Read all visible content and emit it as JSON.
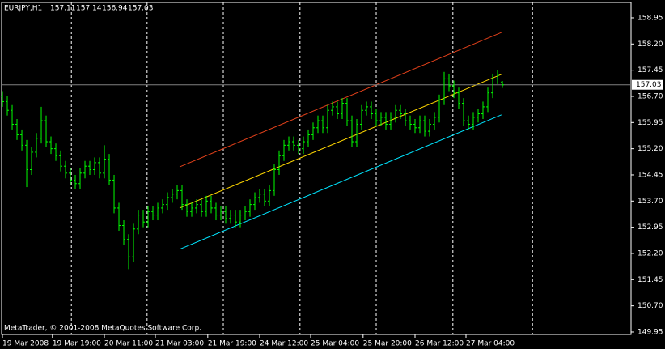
{
  "chart_data": {
    "type": "ohlc",
    "title": "EURJPY,H1",
    "footer": "MetaTrader, © 2001-2008 MetaQuotes Software Corp.",
    "color": "#00ff00",
    "grid": false,
    "open": [
      156.7,
      156.55,
      156.3,
      155.9,
      155.6,
      155.3,
      154.6,
      155.1,
      155.5,
      156.0,
      155.4,
      155.2,
      155.0,
      154.7,
      154.5,
      154.3,
      154.2,
      154.5,
      154.7,
      154.6,
      154.8,
      154.5,
      154.9,
      154.3,
      153.5,
      153.0,
      152.6,
      152.1,
      152.9,
      153.3,
      153.1,
      153.4,
      153.3,
      153.5,
      153.6,
      153.8,
      153.9,
      154.0,
      153.6,
      153.4,
      153.5,
      153.6,
      153.4,
      153.7,
      153.5,
      153.3,
      153.4,
      153.2,
      153.3,
      153.1,
      153.3,
      153.4,
      153.6,
      153.8,
      153.9,
      153.7,
      154.0,
      154.6,
      155.0,
      155.3,
      155.4,
      155.3,
      155.2,
      155.4,
      155.6,
      155.8,
      156.0,
      155.8,
      156.3,
      156.4,
      156.2,
      156.5,
      156.0,
      155.4,
      155.9,
      156.3,
      156.4,
      156.2,
      156.0,
      156.1,
      155.9,
      156.1,
      156.3,
      156.2,
      156.0,
      155.9,
      155.8,
      156.0,
      155.7,
      155.9,
      156.1,
      156.6,
      157.2,
      157.0,
      156.8,
      156.5,
      156.0,
      155.9,
      156.1,
      156.2,
      156.4,
      156.8,
      157.2,
      157.11
    ],
    "high": [
      156.85,
      156.7,
      156.45,
      156.05,
      155.75,
      155.45,
      155.25,
      155.65,
      156.4,
      156.15,
      155.55,
      155.35,
      155.15,
      154.85,
      154.65,
      154.45,
      154.65,
      154.85,
      154.85,
      154.95,
      154.95,
      155.3,
      155.05,
      154.45,
      153.65,
      153.15,
      152.75,
      153.05,
      153.45,
      153.45,
      153.55,
      153.55,
      153.65,
      153.75,
      153.95,
      154.05,
      154.15,
      154.15,
      153.75,
      153.65,
      153.75,
      153.75,
      153.85,
      153.85,
      153.65,
      153.55,
      153.55,
      153.45,
      153.45,
      153.45,
      153.55,
      153.75,
      153.95,
      154.05,
      154.05,
      154.15,
      154.75,
      155.15,
      155.45,
      155.55,
      155.55,
      155.45,
      155.55,
      155.75,
      155.95,
      156.15,
      156.15,
      156.45,
      156.55,
      156.55,
      156.65,
      156.65,
      156.15,
      156.05,
      156.45,
      156.55,
      156.55,
      156.35,
      156.25,
      156.25,
      156.25,
      156.45,
      156.45,
      156.35,
      156.15,
      156.05,
      156.15,
      156.15,
      156.05,
      156.25,
      156.75,
      157.4,
      157.35,
      157.15,
      156.95,
      156.65,
      156.15,
      156.25,
      156.35,
      156.55,
      156.95,
      157.35,
      157.45,
      157.14
    ],
    "low": [
      156.4,
      156.15,
      155.75,
      155.45,
      155.15,
      154.1,
      154.45,
      154.95,
      155.35,
      155.25,
      155.05,
      154.85,
      154.55,
      154.35,
      154.15,
      154.05,
      154.05,
      154.35,
      154.45,
      154.45,
      154.35,
      154.35,
      154.15,
      153.35,
      152.85,
      152.45,
      151.75,
      151.95,
      152.75,
      152.95,
      152.95,
      153.15,
      153.15,
      153.35,
      153.45,
      153.65,
      153.75,
      153.45,
      153.25,
      153.25,
      153.35,
      153.25,
      153.25,
      153.35,
      153.15,
      153.15,
      153.05,
      153.05,
      152.95,
      152.95,
      153.15,
      153.25,
      153.45,
      153.65,
      153.55,
      153.55,
      153.85,
      154.45,
      154.85,
      155.15,
      155.15,
      155.05,
      155.05,
      155.25,
      155.45,
      155.65,
      155.65,
      155.65,
      156.15,
      156.05,
      156.05,
      155.85,
      155.25,
      155.25,
      155.75,
      156.15,
      156.05,
      155.85,
      155.85,
      155.75,
      155.75,
      155.95,
      156.05,
      155.85,
      155.75,
      155.65,
      155.65,
      155.55,
      155.55,
      155.75,
      155.95,
      156.45,
      156.85,
      156.65,
      156.35,
      155.85,
      155.75,
      155.75,
      155.95,
      156.05,
      156.25,
      156.65,
      157.05,
      156.94
    ],
    "close": [
      156.55,
      156.3,
      155.9,
      155.6,
      155.3,
      154.6,
      155.1,
      155.5,
      156.0,
      155.4,
      155.2,
      155.0,
      154.7,
      154.5,
      154.3,
      154.2,
      154.5,
      154.7,
      154.6,
      154.8,
      154.5,
      154.9,
      154.3,
      153.5,
      153.0,
      152.6,
      152.1,
      152.9,
      153.3,
      153.1,
      153.4,
      153.3,
      153.5,
      153.6,
      153.8,
      153.9,
      154.0,
      153.6,
      153.4,
      153.5,
      153.6,
      153.4,
      153.7,
      153.5,
      153.3,
      153.4,
      153.2,
      153.3,
      153.1,
      153.3,
      153.4,
      153.6,
      153.8,
      153.9,
      153.7,
      154.0,
      154.6,
      155.0,
      155.3,
      155.4,
      155.3,
      155.2,
      155.4,
      155.6,
      155.8,
      156.0,
      155.8,
      156.3,
      156.4,
      156.2,
      156.5,
      156.0,
      155.4,
      155.9,
      156.3,
      156.4,
      156.2,
      156.0,
      156.1,
      155.9,
      156.1,
      156.3,
      156.2,
      156.0,
      155.9,
      155.8,
      156.0,
      155.7,
      155.9,
      156.1,
      156.6,
      157.2,
      157.0,
      156.8,
      156.5,
      156.0,
      155.9,
      156.1,
      156.2,
      156.4,
      156.8,
      157.2,
      157.3,
      157.03
    ],
    "xlim": [
      -0.17,
      129.5
    ],
    "xticks": [
      {
        "value": 0,
        "label": "19 Mar 2008"
      },
      {
        "value": 10.3,
        "label": "19 Mar 19:00"
      },
      {
        "value": 21,
        "label": "20 Mar 11:00"
      },
      {
        "value": 31.5,
        "label": "21 Mar 03:00"
      },
      {
        "value": 42.3,
        "label": "21 Mar 19:00"
      },
      {
        "value": 53,
        "label": "24 Mar 12:00"
      },
      {
        "value": 63.5,
        "label": "25 Mar 04:00"
      },
      {
        "value": 74.3,
        "label": "25 Mar 20:00"
      },
      {
        "value": 85,
        "label": "26 Mar 12:00"
      },
      {
        "value": 95.5,
        "label": "27 Mar 04:00"
      }
    ],
    "separators": [
      14.2,
      29.8,
      45.5,
      61.3,
      77,
      92.8,
      109.2
    ],
    "ylim": [
      149.88,
      159.39
    ],
    "yticks": [
      158.95,
      {
        "value": 158.2,
        "label": "158.20"
      },
      157.45,
      {
        "value": 156.7,
        "label": "156.70"
      },
      155.95,
      {
        "value": 155.2,
        "label": "155.20"
      },
      154.45,
      {
        "value": 153.7,
        "label": "153.70"
      },
      152.95,
      {
        "value": 152.2,
        "label": "152.20"
      },
      151.45,
      {
        "value": 150.7,
        "label": "150.70"
      },
      149.95
    ],
    "channel": {
      "x": [
        36.5,
        102.8
      ],
      "lines": [
        {
          "color": "#e0401a",
          "values": [
            154.68,
            158.53
          ]
        },
        {
          "color": "#ffd700",
          "values": [
            153.5,
            157.33
          ]
        },
        {
          "color": "#00e5ff",
          "values": [
            152.32,
            156.17
          ]
        }
      ]
    }
  }
}
